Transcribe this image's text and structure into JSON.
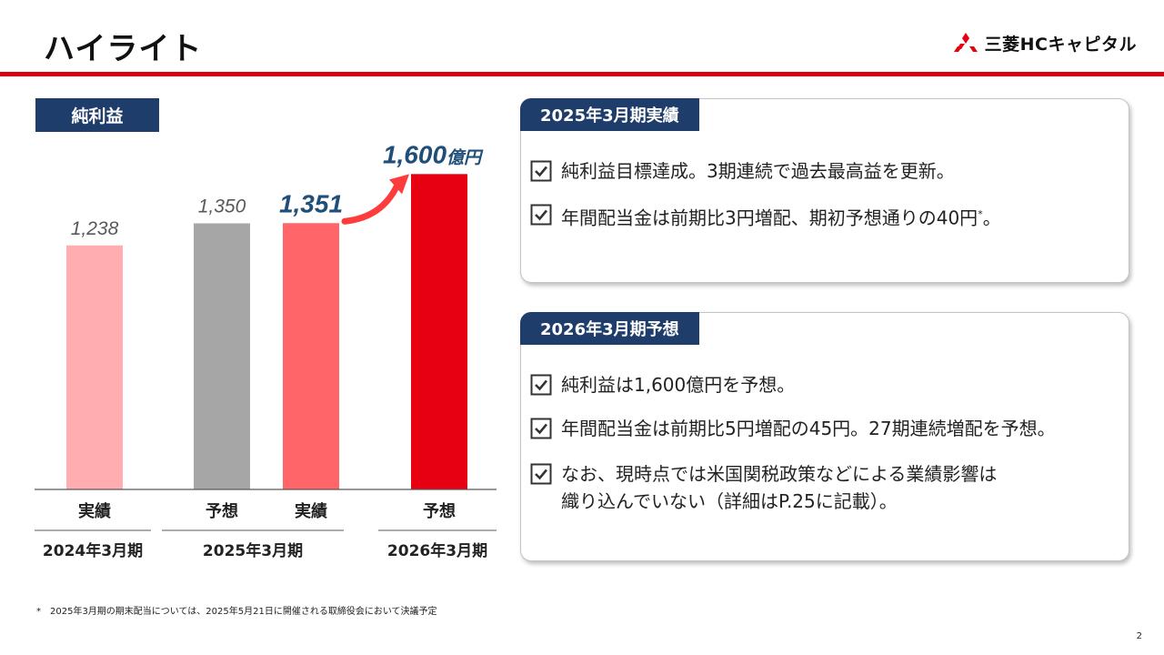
{
  "page": {
    "title": "ハイライト",
    "logo_text": "三菱HCキャピタル",
    "footnote": "*　2025年3月期の期末配当については、2025年5月21日に開催される取締役会において決議予定",
    "page_number": "2"
  },
  "chart_label": "純利益",
  "chart_data": {
    "type": "bar",
    "title": "",
    "xlabel": "",
    "ylabel": "",
    "ylim": [
      0,
      1800
    ],
    "grid": false,
    "categories": [
      "実績",
      "予想",
      "実績",
      "予想"
    ],
    "groups": [
      {
        "label": "2024年3月期",
        "indices": [
          0
        ]
      },
      {
        "label": "2025年3月期",
        "indices": [
          1,
          2
        ]
      },
      {
        "label": "2026年3月期",
        "indices": [
          3
        ]
      }
    ],
    "values": [
      1238,
      1350,
      1351,
      1600
    ],
    "data_labels": [
      "1,238",
      "1,350",
      "1,351",
      "1,600"
    ],
    "unit_label": "億円",
    "colors": [
      "#ffadb1",
      "#a6a6a6",
      "#ff6569",
      "#e60012"
    ],
    "label_colors": [
      "#595959",
      "#595959",
      "#1f4e79",
      "#1f4e79"
    ],
    "arrow_color": "#ff3c3c"
  },
  "panel_2025": {
    "heading": "2025年3月期実績",
    "items": [
      {
        "text": "純利益目標達成。3期連続で過去最高益を更新。"
      },
      {
        "text": "年間配当金は前期比3円増配、期初予想通りの40円",
        "sup": "*",
        "tail": "。"
      }
    ]
  },
  "panel_2026": {
    "heading": "2026年3月期予想",
    "items": [
      {
        "text": "純利益は1,600億円を予想。"
      },
      {
        "text": "年間配当金は前期比5円増配の45円。27期連続増配を予想。"
      },
      {
        "text": "なお、現時点では米国関税政策などによる業績影響は",
        "line2": "織り込んでいない（詳細はP.25に記載）。"
      }
    ]
  },
  "colors": {
    "brand_red": "#d7000f",
    "navy": "#1f3d6b"
  }
}
